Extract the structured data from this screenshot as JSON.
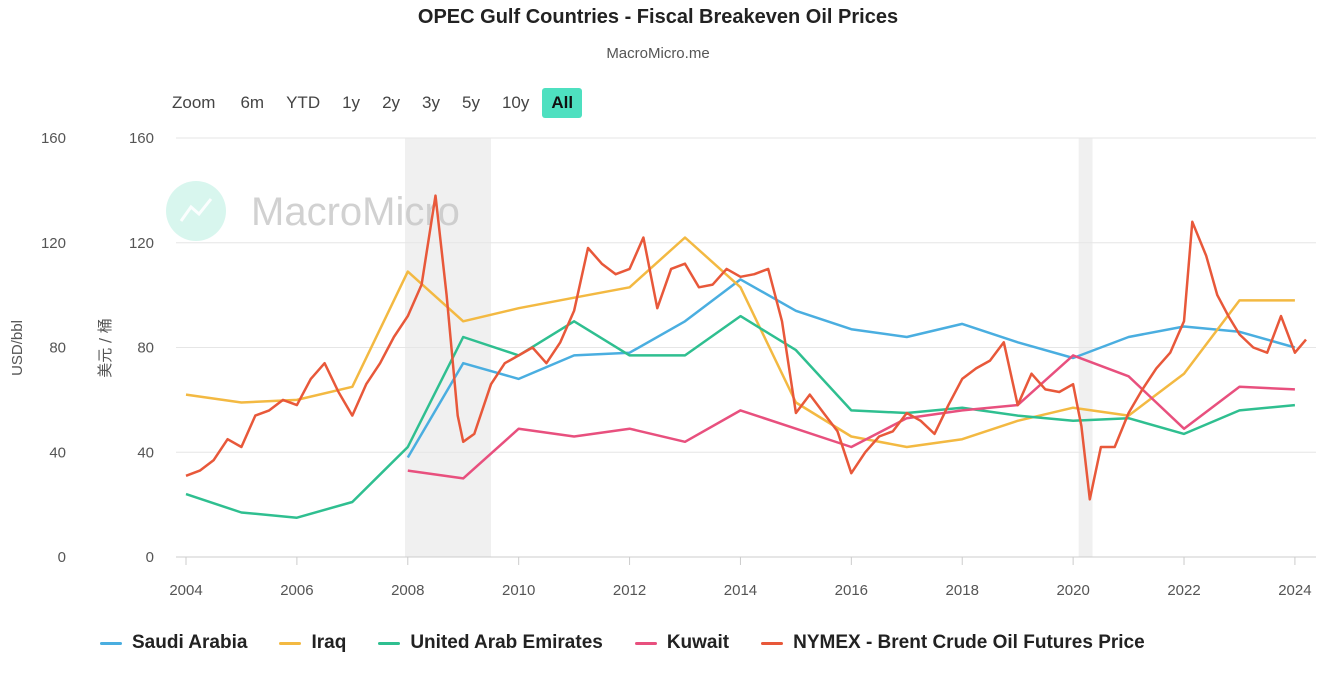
{
  "header": {
    "title": "OPEC Gulf Countries - Fiscal Breakeven Oil Prices",
    "subtitle": "MacroMicro.me"
  },
  "zoom": {
    "label": "Zoom",
    "options": [
      "6m",
      "YTD",
      "1y",
      "2y",
      "3y",
      "5y",
      "10y",
      "All"
    ],
    "active": "All"
  },
  "watermark": {
    "text": "MacroMicro"
  },
  "axes": {
    "left_unit": "USD/bbl",
    "right_unit": "美元 / 桶"
  },
  "chart_data": {
    "type": "line",
    "x_range": [
      2004.0,
      2024.2
    ],
    "ylim": [
      0,
      160
    ],
    "y_ticks": [
      0,
      40,
      80,
      120,
      160
    ],
    "x_ticks": [
      "2004",
      "2006",
      "2008",
      "2010",
      "2012",
      "2014",
      "2016",
      "2018",
      "2020",
      "2022",
      "2024"
    ],
    "grid": true,
    "legend_position": "bottom",
    "recession_shading": [
      [
        2007.95,
        2009.5
      ],
      [
        2020.1,
        2020.35
      ]
    ],
    "series": [
      {
        "name": "Saudi Arabia",
        "color": "#4aaee0",
        "points": [
          [
            2008,
            38
          ],
          [
            2009,
            74
          ],
          [
            2010,
            68
          ],
          [
            2011,
            77
          ],
          [
            2012,
            78
          ],
          [
            2013,
            90
          ],
          [
            2014,
            106
          ],
          [
            2015,
            94
          ],
          [
            2016,
            87
          ],
          [
            2017,
            84
          ],
          [
            2018,
            89
          ],
          [
            2019,
            82
          ],
          [
            2020,
            76
          ],
          [
            2021,
            84
          ],
          [
            2022,
            88
          ],
          [
            2023,
            86
          ],
          [
            2024,
            80
          ]
        ]
      },
      {
        "name": "Iraq",
        "color": "#f3b942",
        "points": [
          [
            2004,
            62
          ],
          [
            2005,
            59
          ],
          [
            2006,
            60
          ],
          [
            2007,
            65
          ],
          [
            2008,
            109
          ],
          [
            2009,
            90
          ],
          [
            2010,
            95
          ],
          [
            2011,
            99
          ],
          [
            2012,
            103
          ],
          [
            2013,
            122
          ],
          [
            2014,
            103
          ],
          [
            2015,
            59
          ],
          [
            2016,
            46
          ],
          [
            2017,
            42
          ],
          [
            2018,
            45
          ],
          [
            2019,
            52
          ],
          [
            2020,
            57
          ],
          [
            2021,
            54
          ],
          [
            2022,
            70
          ],
          [
            2023,
            98
          ],
          [
            2024,
            98
          ]
        ]
      },
      {
        "name": "United Arab Emirates",
        "color": "#2fbf90",
        "points": [
          [
            2004,
            24
          ],
          [
            2005,
            17
          ],
          [
            2006,
            15
          ],
          [
            2007,
            21
          ],
          [
            2008,
            42
          ],
          [
            2009,
            84
          ],
          [
            2010,
            77
          ],
          [
            2011,
            90
          ],
          [
            2012,
            77
          ],
          [
            2013,
            77
          ],
          [
            2014,
            92
          ],
          [
            2015,
            79
          ],
          [
            2016,
            56
          ],
          [
            2017,
            55
          ],
          [
            2018,
            57
          ],
          [
            2019,
            54
          ],
          [
            2020,
            52
          ],
          [
            2021,
            53
          ],
          [
            2022,
            47
          ],
          [
            2023,
            56
          ],
          [
            2024,
            58
          ]
        ]
      },
      {
        "name": "Kuwait",
        "color": "#e8507e",
        "points": [
          [
            2008,
            33
          ],
          [
            2009,
            30
          ],
          [
            2010,
            49
          ],
          [
            2011,
            46
          ],
          [
            2012,
            49
          ],
          [
            2013,
            44
          ],
          [
            2014,
            56
          ],
          [
            2015,
            49
          ],
          [
            2016,
            42
          ],
          [
            2017,
            53
          ],
          [
            2018,
            56
          ],
          [
            2019,
            58
          ],
          [
            2020,
            77
          ],
          [
            2021,
            69
          ],
          [
            2022,
            49
          ],
          [
            2023,
            65
          ],
          [
            2024,
            64
          ]
        ]
      },
      {
        "name": "NYMEX - Brent Crude Oil Futures Price",
        "color": "#e8583a",
        "points": [
          [
            2004.0,
            31
          ],
          [
            2004.25,
            33
          ],
          [
            2004.5,
            37
          ],
          [
            2004.75,
            45
          ],
          [
            2005.0,
            42
          ],
          [
            2005.25,
            54
          ],
          [
            2005.5,
            56
          ],
          [
            2005.75,
            60
          ],
          [
            2006.0,
            58
          ],
          [
            2006.25,
            68
          ],
          [
            2006.5,
            74
          ],
          [
            2006.75,
            63
          ],
          [
            2007.0,
            54
          ],
          [
            2007.25,
            66
          ],
          [
            2007.5,
            74
          ],
          [
            2007.75,
            84
          ],
          [
            2008.0,
            92
          ],
          [
            2008.25,
            104
          ],
          [
            2008.5,
            138
          ],
          [
            2008.7,
            100
          ],
          [
            2008.9,
            54
          ],
          [
            2009.0,
            44
          ],
          [
            2009.2,
            47
          ],
          [
            2009.5,
            66
          ],
          [
            2009.75,
            74
          ],
          [
            2010.0,
            77
          ],
          [
            2010.25,
            80
          ],
          [
            2010.5,
            74
          ],
          [
            2010.75,
            82
          ],
          [
            2011.0,
            94
          ],
          [
            2011.25,
            118
          ],
          [
            2011.5,
            112
          ],
          [
            2011.75,
            108
          ],
          [
            2012.0,
            110
          ],
          [
            2012.25,
            122
          ],
          [
            2012.5,
            95
          ],
          [
            2012.75,
            110
          ],
          [
            2013.0,
            112
          ],
          [
            2013.25,
            103
          ],
          [
            2013.5,
            104
          ],
          [
            2013.75,
            110
          ],
          [
            2014.0,
            107
          ],
          [
            2014.25,
            108
          ],
          [
            2014.5,
            110
          ],
          [
            2014.75,
            90
          ],
          [
            2015.0,
            55
          ],
          [
            2015.25,
            62
          ],
          [
            2015.5,
            55
          ],
          [
            2015.75,
            48
          ],
          [
            2016.0,
            32
          ],
          [
            2016.25,
            40
          ],
          [
            2016.5,
            46
          ],
          [
            2016.75,
            48
          ],
          [
            2017.0,
            55
          ],
          [
            2017.25,
            52
          ],
          [
            2017.5,
            47
          ],
          [
            2017.75,
            58
          ],
          [
            2018.0,
            68
          ],
          [
            2018.25,
            72
          ],
          [
            2018.5,
            75
          ],
          [
            2018.75,
            82
          ],
          [
            2019.0,
            58
          ],
          [
            2019.25,
            70
          ],
          [
            2019.5,
            64
          ],
          [
            2019.75,
            63
          ],
          [
            2020.0,
            66
          ],
          [
            2020.15,
            50
          ],
          [
            2020.3,
            22
          ],
          [
            2020.5,
            42
          ],
          [
            2020.75,
            42
          ],
          [
            2021.0,
            55
          ],
          [
            2021.25,
            64
          ],
          [
            2021.5,
            72
          ],
          [
            2021.75,
            78
          ],
          [
            2022.0,
            90
          ],
          [
            2022.15,
            128
          ],
          [
            2022.4,
            115
          ],
          [
            2022.6,
            100
          ],
          [
            2022.8,
            92
          ],
          [
            2023.0,
            85
          ],
          [
            2023.25,
            80
          ],
          [
            2023.5,
            78
          ],
          [
            2023.75,
            92
          ],
          [
            2024.0,
            78
          ],
          [
            2024.2,
            83
          ]
        ]
      }
    ]
  },
  "legend": {
    "items": [
      {
        "label": "Saudi Arabia",
        "color": "#4aaee0"
      },
      {
        "label": "Iraq",
        "color": "#f3b942"
      },
      {
        "label": "United Arab Emirates",
        "color": "#2fbf90"
      },
      {
        "label": "Kuwait",
        "color": "#e8507e"
      },
      {
        "label": "NYMEX - Brent Crude Oil Futures Price",
        "color": "#e8583a"
      }
    ]
  }
}
